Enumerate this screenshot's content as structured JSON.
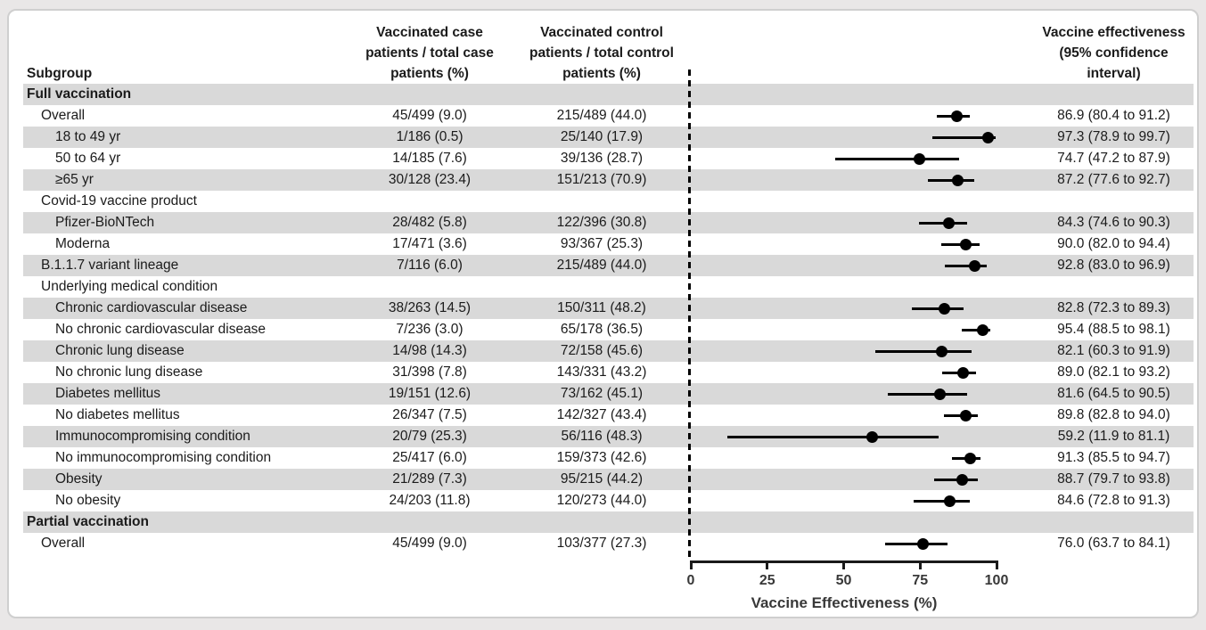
{
  "headers": {
    "subgroup": "Subgroup",
    "case_lines": [
      "Vaccinated case",
      "patients / total case",
      "patients (%)"
    ],
    "control_lines": [
      "Vaccinated control",
      "patients / total control",
      "patients (%)"
    ],
    "ve_lines": [
      "Vaccine effectiveness",
      "(95% confidence",
      "interval)"
    ]
  },
  "colors": {
    "stripe": "#d9d9d9",
    "marker": "#000000",
    "axis_text": "#383838",
    "text": "#1b1b1b"
  },
  "chart_data": {
    "type": "scatter",
    "subtype": "forest-plot",
    "xlabel": "Vaccine Effectiveness (%)",
    "xlim": [
      0,
      100
    ],
    "xticks": [
      0,
      25,
      50,
      75,
      100
    ],
    "reference_line_x": 0,
    "grid": false,
    "rows": [
      {
        "kind": "section",
        "indent": 0,
        "label": "Full vaccination"
      },
      {
        "kind": "data",
        "indent": 1,
        "label": "Overall",
        "case": "45/499 (9.0)",
        "control": "215/489 (44.0)",
        "ve": 86.9,
        "ci_low": 80.4,
        "ci_high": 91.2,
        "ci_text": "86.9 (80.4 to 91.2)"
      },
      {
        "kind": "data",
        "indent": 2,
        "label": "18 to 49 yr",
        "case": "1/186 (0.5)",
        "control": "25/140 (17.9)",
        "ve": 97.3,
        "ci_low": 78.9,
        "ci_high": 99.7,
        "ci_text": "97.3 (78.9 to 99.7)"
      },
      {
        "kind": "data",
        "indent": 2,
        "label": "50 to 64 yr",
        "case": "14/185 (7.6)",
        "control": "39/136 (28.7)",
        "ve": 74.7,
        "ci_low": 47.2,
        "ci_high": 87.9,
        "ci_text": "74.7 (47.2 to 87.9)"
      },
      {
        "kind": "data",
        "indent": 2,
        "label": "≥65 yr",
        "case": "30/128 (23.4)",
        "control": "151/213 (70.9)",
        "ve": 87.2,
        "ci_low": 77.6,
        "ci_high": 92.7,
        "ci_text": "87.2 (77.6 to 92.7)"
      },
      {
        "kind": "subsection",
        "indent": 1,
        "label": "Covid-19 vaccine product"
      },
      {
        "kind": "data",
        "indent": 2,
        "label": "Pfizer-BioNTech",
        "case": "28/482 (5.8)",
        "control": "122/396 (30.8)",
        "ve": 84.3,
        "ci_low": 74.6,
        "ci_high": 90.3,
        "ci_text": "84.3 (74.6 to 90.3)"
      },
      {
        "kind": "data",
        "indent": 2,
        "label": "Moderna",
        "case": "17/471 (3.6)",
        "control": "93/367 (25.3)",
        "ve": 90.0,
        "ci_low": 82.0,
        "ci_high": 94.4,
        "ci_text": "90.0 (82.0 to 94.4)"
      },
      {
        "kind": "data",
        "indent": 1,
        "label": "B.1.1.7 variant lineage",
        "case": "7/116 (6.0)",
        "control": "215/489 (44.0)",
        "ve": 92.8,
        "ci_low": 83.0,
        "ci_high": 96.9,
        "ci_text": "92.8 (83.0 to 96.9)"
      },
      {
        "kind": "subsection",
        "indent": 1,
        "label": "Underlying medical condition"
      },
      {
        "kind": "data",
        "indent": 2,
        "label": "Chronic cardiovascular disease",
        "case": "38/263 (14.5)",
        "control": "150/311 (48.2)",
        "ve": 82.8,
        "ci_low": 72.3,
        "ci_high": 89.3,
        "ci_text": "82.8 (72.3 to 89.3)"
      },
      {
        "kind": "data",
        "indent": 2,
        "label": "No chronic cardiovascular disease",
        "case": "7/236 (3.0)",
        "control": "65/178 (36.5)",
        "ve": 95.4,
        "ci_low": 88.5,
        "ci_high": 98.1,
        "ci_text": "95.4 (88.5 to 98.1)"
      },
      {
        "kind": "data",
        "indent": 2,
        "label": "Chronic lung disease",
        "case": "14/98 (14.3)",
        "control": "72/158 (45.6)",
        "ve": 82.1,
        "ci_low": 60.3,
        "ci_high": 91.9,
        "ci_text": "82.1 (60.3 to 91.9)"
      },
      {
        "kind": "data",
        "indent": 2,
        "label": "No chronic lung disease",
        "case": "31/398 (7.8)",
        "control": "143/331 (43.2)",
        "ve": 89.0,
        "ci_low": 82.1,
        "ci_high": 93.2,
        "ci_text": "89.0 (82.1 to 93.2)"
      },
      {
        "kind": "data",
        "indent": 2,
        "label": "Diabetes mellitus",
        "case": "19/151 (12.6)",
        "control": "73/162 (45.1)",
        "ve": 81.6,
        "ci_low": 64.5,
        "ci_high": 90.5,
        "ci_text": "81.6 (64.5 to 90.5)"
      },
      {
        "kind": "data",
        "indent": 2,
        "label": "No diabetes mellitus",
        "case": "26/347 (7.5)",
        "control": "142/327 (43.4)",
        "ve": 89.8,
        "ci_low": 82.8,
        "ci_high": 94.0,
        "ci_text": "89.8 (82.8 to 94.0)"
      },
      {
        "kind": "data",
        "indent": 2,
        "label": "Immunocompromising condition",
        "case": "20/79 (25.3)",
        "control": "56/116 (48.3)",
        "ve": 59.2,
        "ci_low": 11.9,
        "ci_high": 81.1,
        "ci_text": "59.2 (11.9 to 81.1)"
      },
      {
        "kind": "data",
        "indent": 2,
        "label": "No immunocompromising condition",
        "case": "25/417 (6.0)",
        "control": "159/373 (42.6)",
        "ve": 91.3,
        "ci_low": 85.5,
        "ci_high": 94.7,
        "ci_text": "91.3 (85.5 to 94.7)"
      },
      {
        "kind": "data",
        "indent": 2,
        "label": "Obesity",
        "case": "21/289 (7.3)",
        "control": "95/215 (44.2)",
        "ve": 88.7,
        "ci_low": 79.7,
        "ci_high": 93.8,
        "ci_text": "88.7 (79.7 to 93.8)"
      },
      {
        "kind": "data",
        "indent": 2,
        "label": "No obesity",
        "case": "24/203 (11.8)",
        "control": "120/273 (44.0)",
        "ve": 84.6,
        "ci_low": 72.8,
        "ci_high": 91.3,
        "ci_text": "84.6 (72.8 to 91.3)"
      },
      {
        "kind": "section",
        "indent": 0,
        "label": "Partial vaccination"
      },
      {
        "kind": "data",
        "indent": 1,
        "label": "Overall",
        "case": "45/499 (9.0)",
        "control": "103/377 (27.3)",
        "ve": 76.0,
        "ci_low": 63.7,
        "ci_high": 84.1,
        "ci_text": "76.0 (63.7 to 84.1)"
      }
    ]
  }
}
